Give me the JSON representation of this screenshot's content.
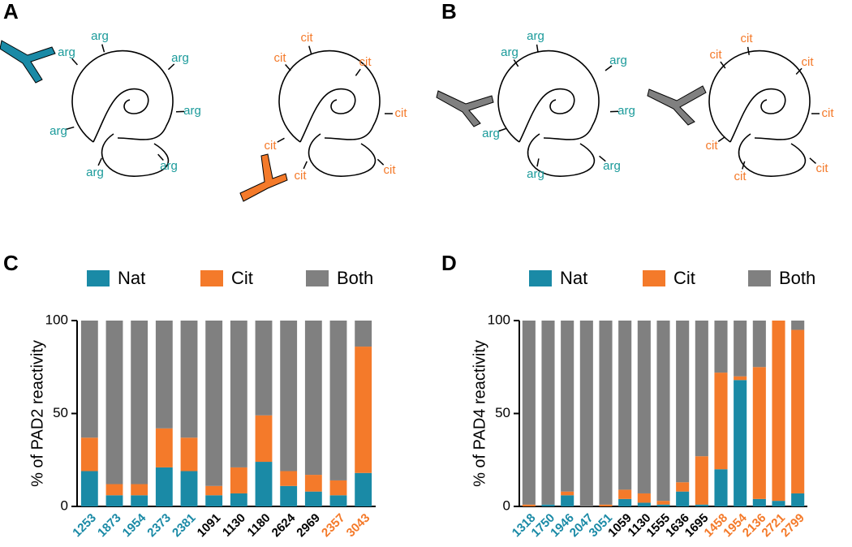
{
  "panel_labels": [
    "A",
    "B",
    "C",
    "D"
  ],
  "diagrams": [
    {
      "labels": [
        "arg",
        "arg",
        "arg",
        "arg",
        "arg",
        "arg",
        "arg"
      ],
      "color": "#1a9a9a"
    },
    {
      "labels": [
        "cit",
        "cit",
        "cit",
        "cit",
        "cit",
        "cit",
        "cit"
      ],
      "color": "#f47a2a"
    },
    {
      "labels": [
        "arg",
        "arg",
        "arg",
        "arg",
        "arg",
        "arg",
        "arg"
      ],
      "color": "#1a9a9a"
    },
    {
      "labels": [
        "cit",
        "cit",
        "cit",
        "cit",
        "cit",
        "cit",
        "cit"
      ],
      "color": "#f47a2a"
    }
  ],
  "chart_data": [
    {
      "type": "bar",
      "stacked": true,
      "ylabel": "% of PAD2 reactivity",
      "categories": [
        "1253",
        "1873",
        "1954",
        "2373",
        "2381",
        "1091",
        "1130",
        "1180",
        "2624",
        "2969",
        "2357",
        "3043"
      ],
      "category_colors": [
        "#1a8aa6",
        "#1a8aa6",
        "#1a8aa6",
        "#1a8aa6",
        "#1a8aa6",
        "#000000",
        "#000000",
        "#000000",
        "#000000",
        "#000000",
        "#f47a2a",
        "#f47a2a"
      ],
      "series": [
        {
          "name": "Nat",
          "color": "#1a8aa6",
          "values": [
            19,
            6,
            6,
            21,
            19,
            6,
            7,
            24,
            11,
            8,
            6,
            18
          ]
        },
        {
          "name": "Cit",
          "color": "#f47a2a",
          "values": [
            18,
            6,
            6,
            21,
            18,
            5,
            14,
            25,
            8,
            9,
            8,
            68
          ]
        },
        {
          "name": "Both",
          "color": "#808080",
          "values": [
            63,
            88,
            88,
            58,
            63,
            89,
            79,
            51,
            81,
            83,
            86,
            14
          ]
        }
      ],
      "ylim": [
        0,
        100
      ],
      "yticks": [
        0,
        50,
        100
      ]
    },
    {
      "type": "bar",
      "stacked": true,
      "ylabel": "% of PAD4 reactivity",
      "categories": [
        "1318",
        "1750",
        "1946",
        "2047",
        "3051",
        "1059",
        "1130",
        "1555",
        "1636",
        "1695",
        "1458",
        "1954",
        "2136",
        "2721",
        "2799"
      ],
      "category_colors": [
        "#1a8aa6",
        "#1a8aa6",
        "#1a8aa6",
        "#1a8aa6",
        "#1a8aa6",
        "#000000",
        "#000000",
        "#000000",
        "#000000",
        "#000000",
        "#f47a2a",
        "#f47a2a",
        "#f47a2a",
        "#f47a2a",
        "#f47a2a"
      ],
      "series": [
        {
          "name": "Nat",
          "color": "#1a8aa6",
          "values": [
            0,
            1,
            6,
            0,
            0,
            4,
            2,
            1,
            8,
            1,
            20,
            68,
            4,
            3,
            7
          ]
        },
        {
          "name": "Cit",
          "color": "#f47a2a",
          "values": [
            1,
            0,
            2,
            0,
            1,
            5,
            5,
            2,
            5,
            26,
            52,
            2,
            71,
            97,
            88
          ]
        },
        {
          "name": "Both",
          "color": "#808080",
          "values": [
            99,
            99,
            92,
            100,
            99,
            91,
            93,
            97,
            87,
            73,
            28,
            30,
            25,
            0,
            5
          ]
        }
      ],
      "ylim": [
        0,
        100
      ],
      "yticks": [
        0,
        50,
        100
      ]
    }
  ]
}
